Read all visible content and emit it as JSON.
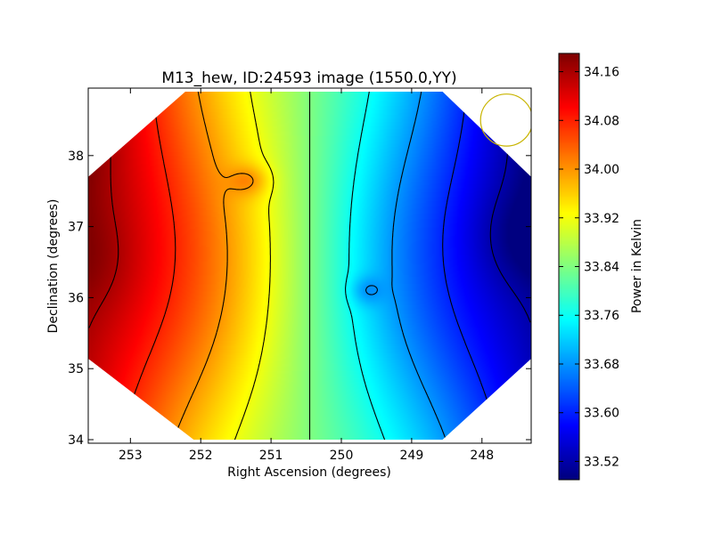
{
  "chart_data": {
    "type": "heatmap",
    "title": "M13_hew, ID:24593 image (1550.0,YY)",
    "xlabel": "Right Ascension (degrees)",
    "ylabel": "Declination (degrees)",
    "xlim": [
      253.6,
      247.3
    ],
    "ylim": [
      33.95,
      38.95
    ],
    "x_ticks": [
      253,
      252,
      251,
      250,
      249,
      248
    ],
    "y_ticks": [
      34,
      35,
      36,
      37,
      38
    ],
    "x_tick_labels": [
      "253",
      "252",
      "251",
      "250",
      "249",
      "248"
    ],
    "y_tick_labels": [
      "34",
      "35",
      "36",
      "37",
      "38"
    ],
    "colormap": "jet",
    "colorbar": {
      "label": "Power in Kelvin",
      "min": 33.49,
      "max": 34.19,
      "ticks": [
        33.52,
        33.6,
        33.68,
        33.76,
        33.84,
        33.92,
        34.0,
        34.08,
        34.16
      ],
      "tick_labels": [
        "33.52",
        "33.60",
        "33.68",
        "33.76",
        "33.84",
        "33.92",
        "34.00",
        "34.08",
        "34.16"
      ]
    },
    "contour_levels": [
      33.52,
      33.6,
      33.68,
      33.76,
      33.84,
      33.92,
      34.0,
      34.08,
      34.16
    ],
    "contour_color": "#000000",
    "features": [
      {
        "kind": "maximum",
        "ra": 253.45,
        "dec": 36.5,
        "value": 34.17
      },
      {
        "kind": "minimum",
        "ra": 247.4,
        "dec": 36.85,
        "value": 33.5
      },
      {
        "kind": "local_maximum",
        "ra": 251.3,
        "dec": 37.65,
        "value": 33.98
      },
      {
        "kind": "local_minimum",
        "ra": 249.65,
        "dec": 36.1,
        "value": 33.7
      },
      {
        "kind": "beam",
        "ra": 247.65,
        "dec": 38.5,
        "radius_deg": 0.37,
        "color": "#c8b400"
      }
    ],
    "field_shape": "octagon",
    "field_edge": {
      "ra_min": 253.6,
      "ra_max": 247.3,
      "dec_min": 34.0,
      "dec_max": 38.9
    },
    "field_bevel_deg": 1.2
  }
}
